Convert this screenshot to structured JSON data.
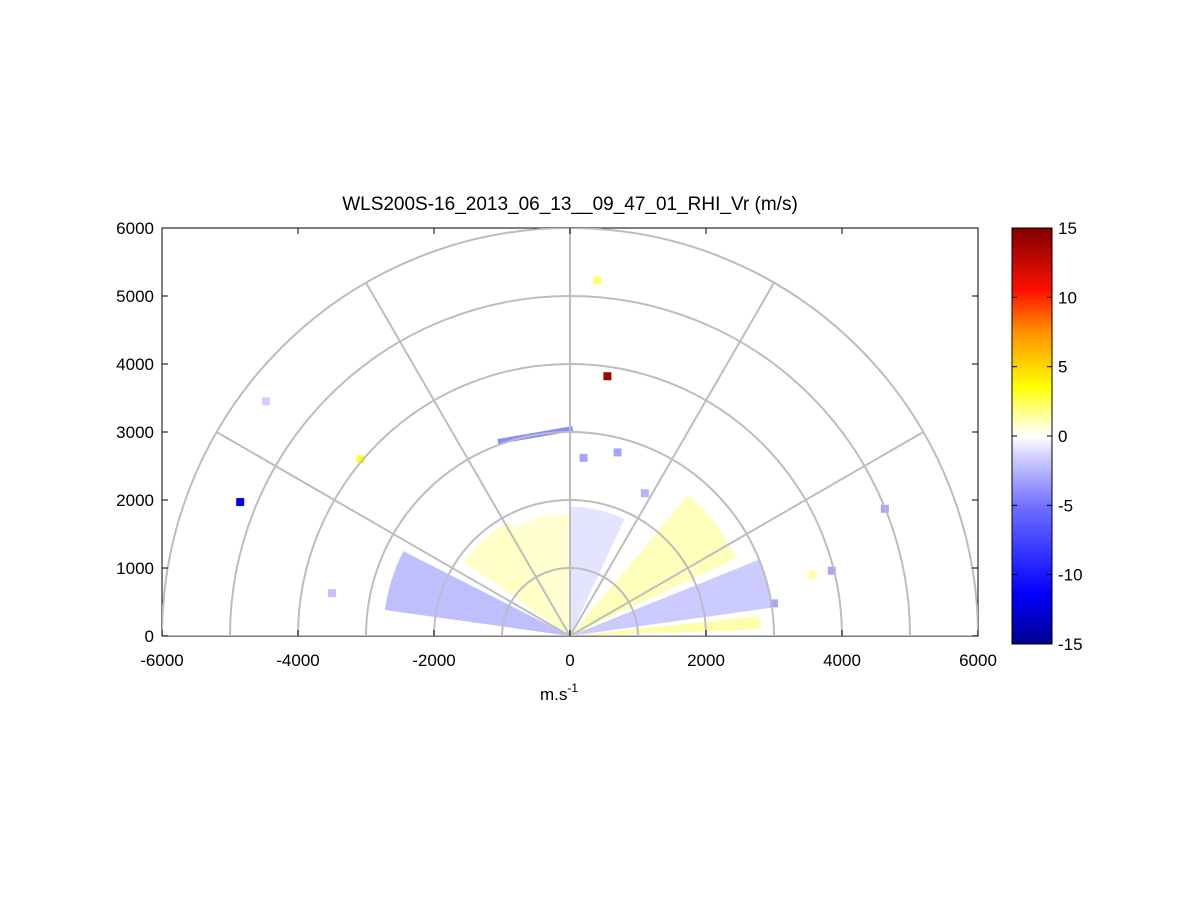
{
  "chart_data": {
    "type": "heatmap",
    "subtype": "polar-rhi",
    "title": "WLS200S-16_2013_06_13__09_47_01_RHI_Vr (m/s)",
    "xlabel": "m.s",
    "xlabel_superscript": "-1",
    "xlim": [
      -6000,
      6000
    ],
    "ylim": [
      0,
      6000
    ],
    "x_ticks": [
      -6000,
      -4000,
      -2000,
      0,
      2000,
      4000,
      6000
    ],
    "x_tick_labels": [
      "-6000",
      "-4000",
      "-2000",
      "0",
      "2000",
      "4000",
      "6000"
    ],
    "y_ticks": [
      0,
      1000,
      2000,
      3000,
      4000,
      5000,
      6000
    ],
    "y_tick_labels": [
      "0",
      "1000",
      "2000",
      "3000",
      "4000",
      "5000",
      "6000"
    ],
    "polar_rings_m": [
      1000,
      2000,
      3000,
      4000,
      5000,
      6000
    ],
    "polar_spokes_deg": [
      0,
      30,
      60,
      90,
      120,
      150,
      180
    ],
    "colorbar": {
      "range": [
        -15,
        15
      ],
      "ticks": [
        15,
        10,
        5,
        0,
        -5,
        -10,
        -15
      ],
      "tick_labels": [
        "15",
        "10",
        "5",
        "0",
        "-5",
        "-10",
        "-15"
      ],
      "colors_low_to_high": [
        "#00008f",
        "#0000ff",
        "#7f7fff",
        "#ffffff",
        "#ffff00",
        "#ff8000",
        "#ff0000",
        "#800000"
      ]
    },
    "grid": true,
    "legend": "colorbar-right",
    "sectors": [
      {
        "name": "left-near",
        "az_from": 153,
        "az_to": 172,
        "r_from": 80,
        "r_to": 2750,
        "value": -2.5
      },
      {
        "name": "left-mid",
        "az_from": 118,
        "az_to": 145,
        "r_from": 80,
        "r_to": 1900,
        "value": 1.0
      },
      {
        "name": "center-left",
        "az_from": 90,
        "az_to": 118,
        "r_from": 80,
        "r_to": 1800,
        "value": 0.8
      },
      {
        "name": "center-right",
        "az_from": 65,
        "az_to": 90,
        "r_from": 80,
        "r_to": 1900,
        "value": -1.0
      },
      {
        "name": "right-mid",
        "az_from": 25,
        "az_to": 50,
        "r_from": 80,
        "r_to": 2700,
        "value": 1.2
      },
      {
        "name": "right-near",
        "az_from": 8,
        "az_to": 22,
        "r_from": 80,
        "r_to": 3000,
        "value": -2.0
      },
      {
        "name": "right-ground",
        "az_from": 2,
        "az_to": 6,
        "r_from": 80,
        "r_to": 2800,
        "value": 1.5
      }
    ],
    "points": [
      {
        "x": -4850,
        "y": 1970,
        "value": -12
      },
      {
        "x": -3080,
        "y": 2600,
        "value": 3
      },
      {
        "x": -4470,
        "y": 3450,
        "value": -1.5
      },
      {
        "x": -3500,
        "y": 630,
        "value": -2
      },
      {
        "x": 550,
        "y": 3820,
        "value": 14
      },
      {
        "x": 400,
        "y": 5230,
        "value": 2
      },
      {
        "x": 3550,
        "y": 900,
        "value": 1.5
      },
      {
        "x": 3850,
        "y": 960,
        "value": -3
      },
      {
        "x": 4630,
        "y": 1870,
        "value": -3
      },
      {
        "x": 200,
        "y": 2620,
        "value": -3
      },
      {
        "x": 700,
        "y": 2700,
        "value": -3
      },
      {
        "x": 1100,
        "y": 2100,
        "value": -2.5
      },
      {
        "x": 3000,
        "y": 480,
        "value": -3
      }
    ],
    "segments": [
      {
        "x1": -1060,
        "y1": 2860,
        "x2": 40,
        "y2": 3050,
        "value": -4
      }
    ]
  }
}
